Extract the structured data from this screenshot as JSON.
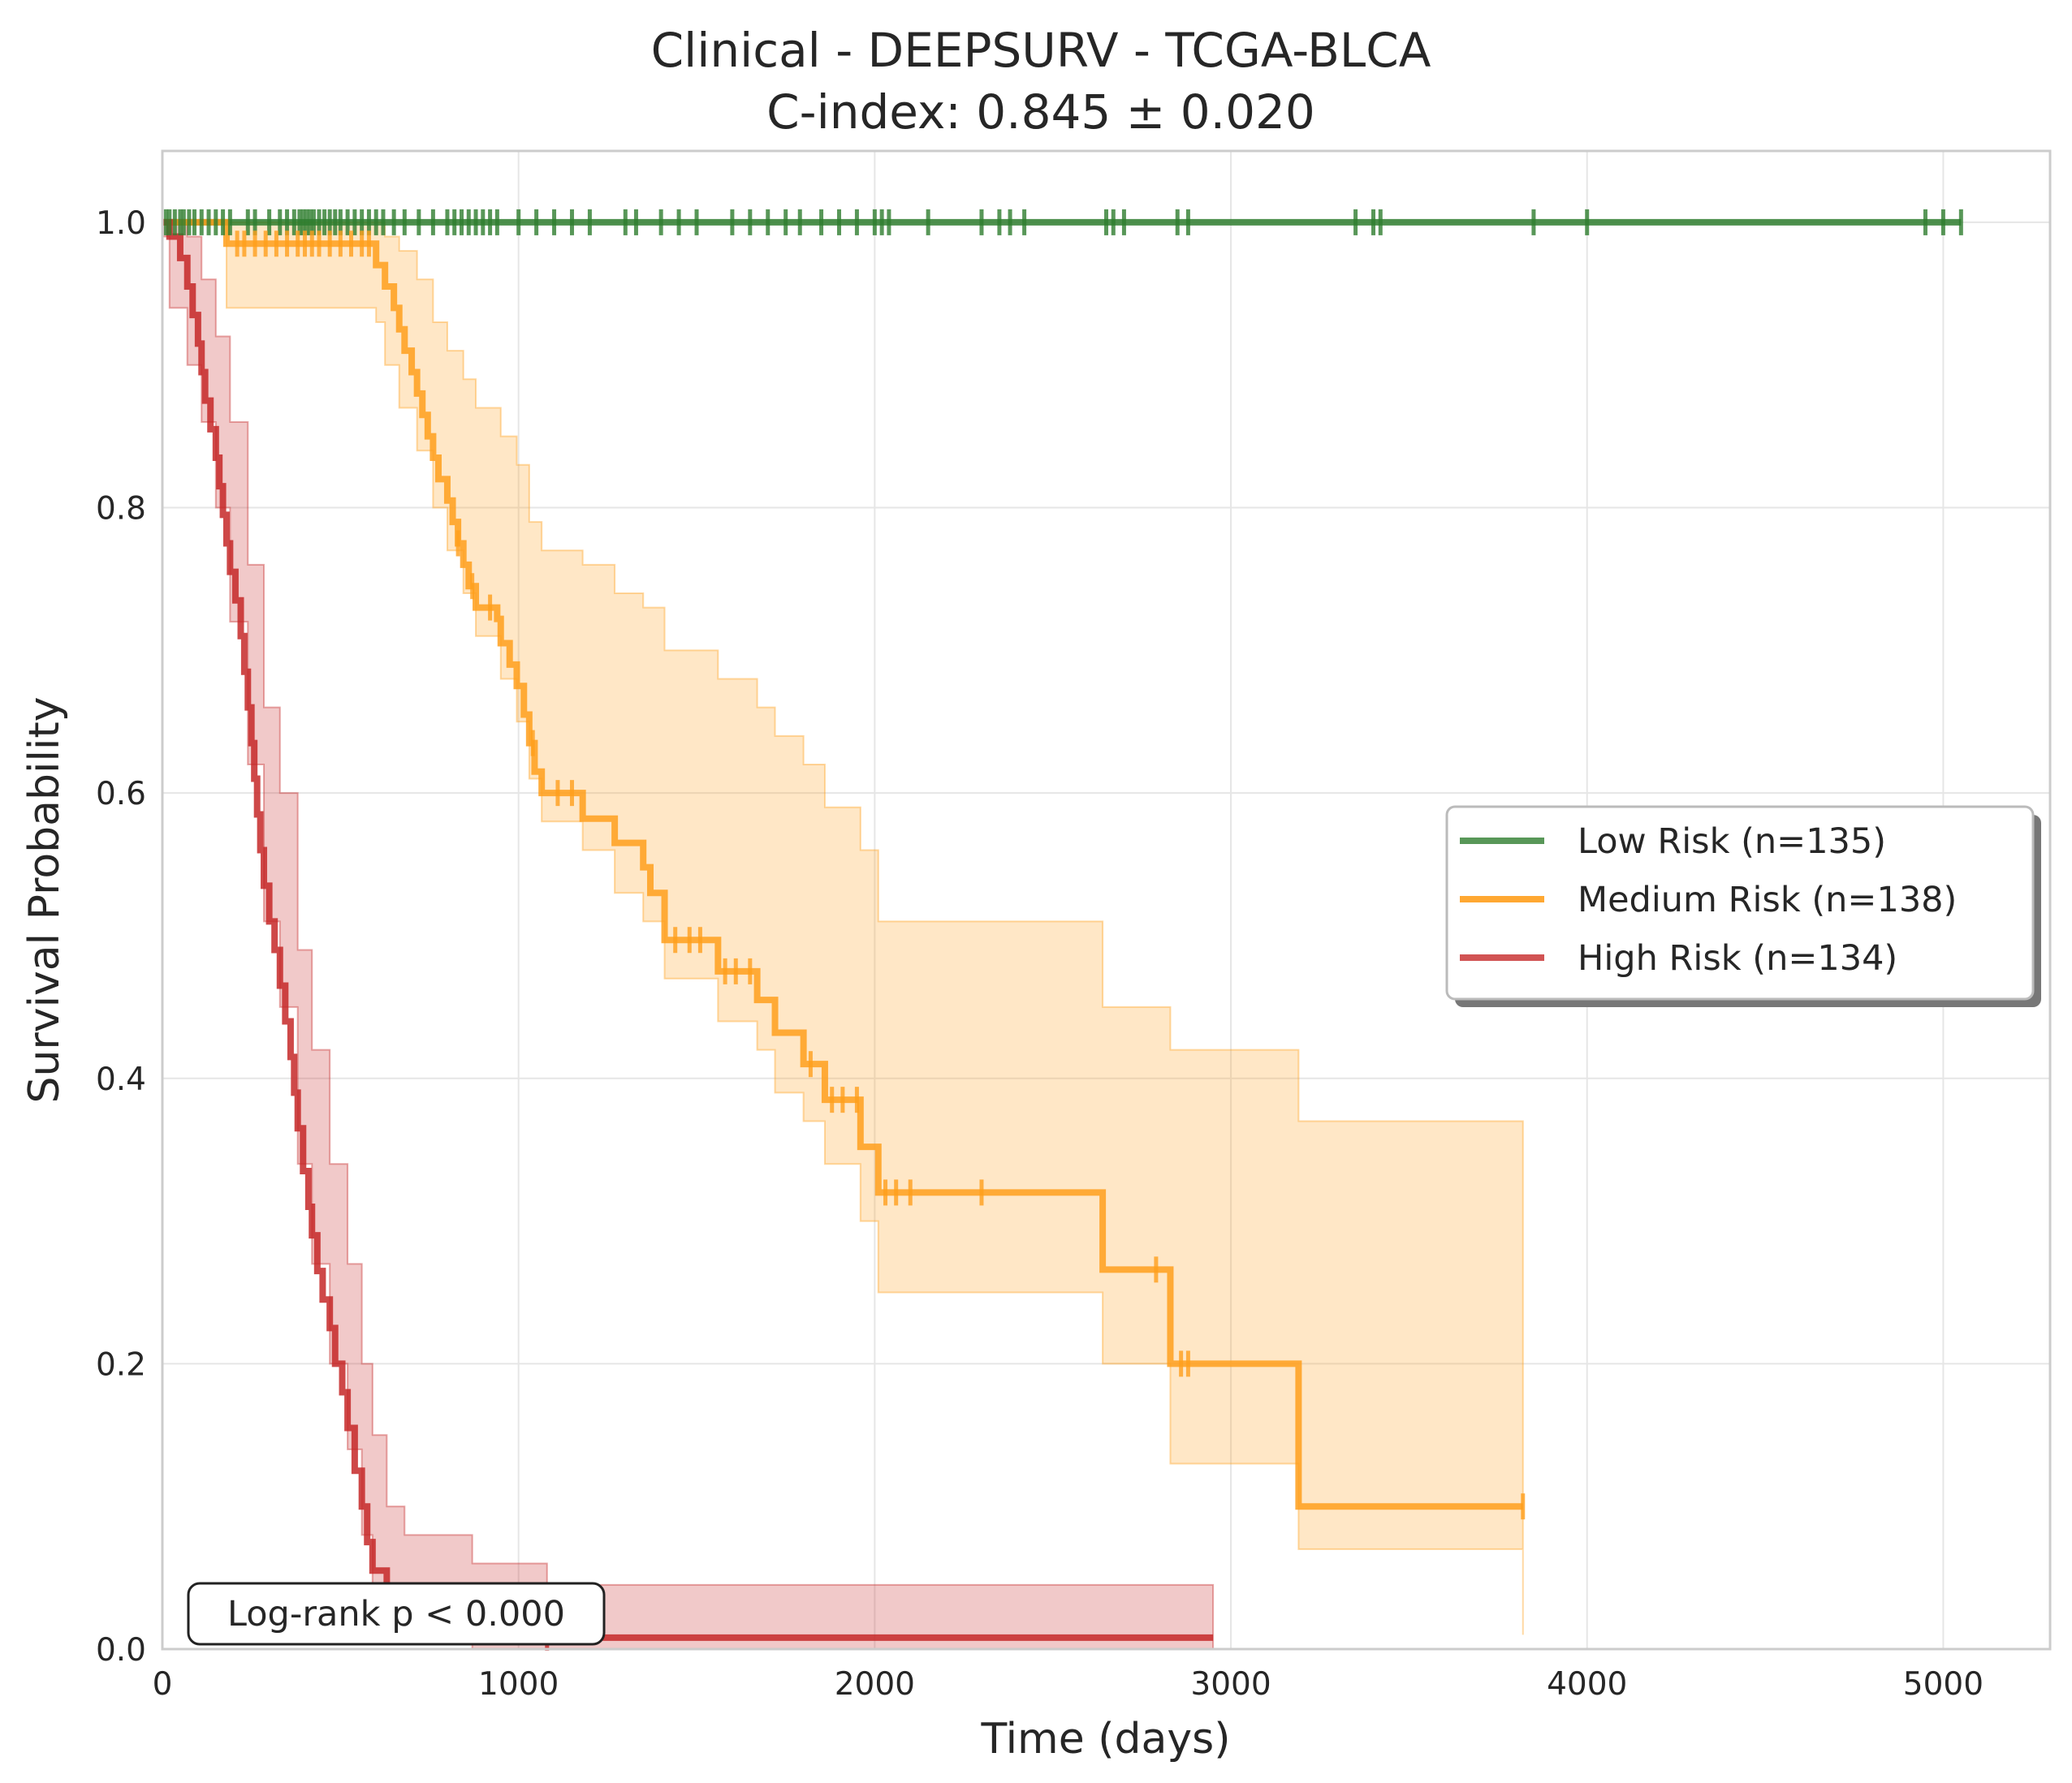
{
  "chart_data": {
    "type": "line",
    "subtype": "kaplan-meier",
    "title": "Clinical - DEEPSURV - TCGA-BLCA",
    "subtitle": "C-index: 0.845 ± 0.020",
    "xlabel": "Time (days)",
    "ylabel": "Survival Probability",
    "xlim": [
      0,
      5300
    ],
    "ylim": [
      0,
      1.05
    ],
    "xticks": [
      0,
      1000,
      2000,
      3000,
      4000,
      5000
    ],
    "xtick_labels": [
      "0",
      "1000",
      "2000",
      "3000",
      "4000",
      "5000"
    ],
    "yticks": [
      0.0,
      0.2,
      0.4,
      0.6,
      0.8,
      1.0
    ],
    "ytick_labels": [
      "0.0",
      "0.2",
      "0.4",
      "0.6",
      "0.8",
      "1.0"
    ],
    "grid": true,
    "legend_position": "center-right",
    "annotation": "Log-rank p < 0.000",
    "series": [
      {
        "name": "Low Risk (n=135)",
        "color": "#2e7d2e",
        "curve": [
          [
            0,
            1.0
          ],
          [
            5050,
            1.0
          ]
        ],
        "ci": [],
        "censors": [
          10,
          20,
          35,
          50,
          60,
          75,
          90,
          110,
          130,
          150,
          170,
          190,
          240,
          260,
          300,
          330,
          350,
          370,
          385,
          395,
          405,
          415,
          425,
          440,
          455,
          470,
          485,
          500,
          520,
          540,
          560,
          580,
          600,
          620,
          650,
          680,
          720,
          760,
          800,
          820,
          840,
          860,
          880,
          900,
          920,
          940,
          1000,
          1050,
          1100,
          1150,
          1200,
          1300,
          1330,
          1400,
          1450,
          1500,
          1600,
          1650,
          1700,
          1750,
          1790,
          1850,
          1900,
          1950,
          2000,
          2020,
          2040,
          2150,
          2300,
          2350,
          2380,
          2420,
          2650,
          2670,
          2700,
          2850,
          2880,
          3350,
          3400,
          3420,
          3850,
          4000,
          4950,
          5000,
          5050
        ]
      },
      {
        "name": "Medium Risk (n=138)",
        "color": "#ff9f1c",
        "curve": [
          [
            0,
            1.0
          ],
          [
            180,
            1.0
          ],
          [
            180,
            0.985
          ],
          [
            600,
            0.985
          ],
          [
            600,
            0.97
          ],
          [
            625,
            0.97
          ],
          [
            625,
            0.955
          ],
          [
            650,
            0.955
          ],
          [
            650,
            0.94
          ],
          [
            665,
            0.94
          ],
          [
            665,
            0.925
          ],
          [
            680,
            0.925
          ],
          [
            680,
            0.91
          ],
          [
            700,
            0.91
          ],
          [
            700,
            0.895
          ],
          [
            715,
            0.895
          ],
          [
            715,
            0.88
          ],
          [
            730,
            0.88
          ],
          [
            730,
            0.865
          ],
          [
            745,
            0.865
          ],
          [
            745,
            0.85
          ],
          [
            760,
            0.85
          ],
          [
            760,
            0.835
          ],
          [
            775,
            0.835
          ],
          [
            775,
            0.82
          ],
          [
            800,
            0.82
          ],
          [
            800,
            0.805
          ],
          [
            815,
            0.805
          ],
          [
            815,
            0.79
          ],
          [
            830,
            0.79
          ],
          [
            830,
            0.775
          ],
          [
            845,
            0.775
          ],
          [
            845,
            0.76
          ],
          [
            860,
            0.76
          ],
          [
            860,
            0.745
          ],
          [
            880,
            0.745
          ],
          [
            880,
            0.73
          ],
          [
            940,
            0.73
          ],
          [
            940,
            0.722
          ],
          [
            950,
            0.722
          ],
          [
            950,
            0.705
          ],
          [
            975,
            0.705
          ],
          [
            975,
            0.69
          ],
          [
            995,
            0.69
          ],
          [
            995,
            0.675
          ],
          [
            1015,
            0.675
          ],
          [
            1015,
            0.655
          ],
          [
            1030,
            0.655
          ],
          [
            1030,
            0.635
          ],
          [
            1045,
            0.635
          ],
          [
            1045,
            0.615
          ],
          [
            1065,
            0.615
          ],
          [
            1065,
            0.6
          ],
          [
            1180,
            0.6
          ],
          [
            1180,
            0.582
          ],
          [
            1270,
            0.582
          ],
          [
            1270,
            0.565
          ],
          [
            1350,
            0.565
          ],
          [
            1350,
            0.548
          ],
          [
            1370,
            0.548
          ],
          [
            1370,
            0.53
          ],
          [
            1410,
            0.53
          ],
          [
            1410,
            0.497
          ],
          [
            1560,
            0.497
          ],
          [
            1560,
            0.475
          ],
          [
            1670,
            0.475
          ],
          [
            1670,
            0.455
          ],
          [
            1720,
            0.455
          ],
          [
            1720,
            0.432
          ],
          [
            1800,
            0.432
          ],
          [
            1800,
            0.41
          ],
          [
            1860,
            0.41
          ],
          [
            1860,
            0.385
          ],
          [
            1960,
            0.385
          ],
          [
            1960,
            0.352
          ],
          [
            2010,
            0.352
          ],
          [
            2010,
            0.32
          ],
          [
            2640,
            0.32
          ],
          [
            2640,
            0.266
          ],
          [
            2830,
            0.266
          ],
          [
            2830,
            0.2
          ],
          [
            3190,
            0.2
          ],
          [
            3190,
            0.1
          ],
          [
            3820,
            0.1
          ]
        ],
        "ci": [
          [
            0,
            1.0,
            1.0
          ],
          [
            180,
            0.94,
            1.0
          ],
          [
            600,
            0.93,
            1.0
          ],
          [
            625,
            0.9,
            0.99
          ],
          [
            665,
            0.87,
            0.98
          ],
          [
            715,
            0.84,
            0.96
          ],
          [
            760,
            0.8,
            0.93
          ],
          [
            800,
            0.77,
            0.91
          ],
          [
            845,
            0.74,
            0.89
          ],
          [
            880,
            0.71,
            0.87
          ],
          [
            950,
            0.68,
            0.85
          ],
          [
            995,
            0.65,
            0.83
          ],
          [
            1030,
            0.61,
            0.79
          ],
          [
            1065,
            0.58,
            0.77
          ],
          [
            1180,
            0.56,
            0.76
          ],
          [
            1270,
            0.53,
            0.74
          ],
          [
            1350,
            0.51,
            0.73
          ],
          [
            1410,
            0.47,
            0.7
          ],
          [
            1560,
            0.44,
            0.68
          ],
          [
            1670,
            0.42,
            0.66
          ],
          [
            1720,
            0.39,
            0.64
          ],
          [
            1800,
            0.37,
            0.62
          ],
          [
            1860,
            0.34,
            0.59
          ],
          [
            1960,
            0.3,
            0.56
          ],
          [
            2010,
            0.25,
            0.51
          ],
          [
            2640,
            0.2,
            0.45
          ],
          [
            2830,
            0.13,
            0.42
          ],
          [
            3190,
            0.07,
            0.37
          ],
          [
            3820,
            0.01,
            0.32
          ]
        ],
        "censors": [
          210,
          230,
          260,
          290,
          320,
          350,
          380,
          400,
          420,
          440,
          470,
          500,
          530,
          560,
          580,
          830,
          870,
          920,
          1040,
          1110,
          1150,
          1440,
          1480,
          1510,
          1580,
          1610,
          1650,
          1820,
          1880,
          1910,
          1950,
          2030,
          2060,
          2100,
          2300,
          2790,
          2860,
          2880,
          3820
        ]
      },
      {
        "name": "High Risk (n=134)",
        "color": "#c62828",
        "curve": [
          [
            0,
            1.0
          ],
          [
            20,
            1.0
          ],
          [
            20,
            0.99
          ],
          [
            50,
            0.99
          ],
          [
            50,
            0.975
          ],
          [
            70,
            0.975
          ],
          [
            70,
            0.955
          ],
          [
            85,
            0.955
          ],
          [
            85,
            0.935
          ],
          [
            100,
            0.935
          ],
          [
            100,
            0.915
          ],
          [
            110,
            0.915
          ],
          [
            110,
            0.895
          ],
          [
            120,
            0.895
          ],
          [
            120,
            0.875
          ],
          [
            135,
            0.875
          ],
          [
            135,
            0.855
          ],
          [
            150,
            0.855
          ],
          [
            150,
            0.835
          ],
          [
            160,
            0.835
          ],
          [
            160,
            0.815
          ],
          [
            170,
            0.815
          ],
          [
            170,
            0.795
          ],
          [
            180,
            0.795
          ],
          [
            180,
            0.775
          ],
          [
            190,
            0.775
          ],
          [
            190,
            0.755
          ],
          [
            205,
            0.755
          ],
          [
            205,
            0.735
          ],
          [
            220,
            0.735
          ],
          [
            220,
            0.71
          ],
          [
            230,
            0.71
          ],
          [
            230,
            0.685
          ],
          [
            240,
            0.685
          ],
          [
            240,
            0.66
          ],
          [
            250,
            0.66
          ],
          [
            250,
            0.635
          ],
          [
            258,
            0.635
          ],
          [
            258,
            0.61
          ],
          [
            266,
            0.61
          ],
          [
            266,
            0.585
          ],
          [
            275,
            0.585
          ],
          [
            275,
            0.56
          ],
          [
            285,
            0.56
          ],
          [
            285,
            0.535
          ],
          [
            300,
            0.535
          ],
          [
            300,
            0.51
          ],
          [
            315,
            0.51
          ],
          [
            315,
            0.49
          ],
          [
            330,
            0.49
          ],
          [
            330,
            0.465
          ],
          [
            345,
            0.465
          ],
          [
            345,
            0.44
          ],
          [
            360,
            0.44
          ],
          [
            360,
            0.415
          ],
          [
            370,
            0.415
          ],
          [
            370,
            0.39
          ],
          [
            380,
            0.39
          ],
          [
            380,
            0.365
          ],
          [
            395,
            0.365
          ],
          [
            395,
            0.335
          ],
          [
            410,
            0.335
          ],
          [
            410,
            0.31
          ],
          [
            420,
            0.31
          ],
          [
            420,
            0.29
          ],
          [
            435,
            0.29
          ],
          [
            435,
            0.265
          ],
          [
            450,
            0.265
          ],
          [
            450,
            0.245
          ],
          [
            470,
            0.245
          ],
          [
            470,
            0.225
          ],
          [
            485,
            0.225
          ],
          [
            485,
            0.2
          ],
          [
            505,
            0.2
          ],
          [
            505,
            0.18
          ],
          [
            520,
            0.18
          ],
          [
            520,
            0.155
          ],
          [
            540,
            0.155
          ],
          [
            540,
            0.125
          ],
          [
            560,
            0.125
          ],
          [
            560,
            0.1
          ],
          [
            575,
            0.1
          ],
          [
            575,
            0.075
          ],
          [
            590,
            0.075
          ],
          [
            590,
            0.055
          ],
          [
            630,
            0.055
          ],
          [
            630,
            0.03
          ],
          [
            680,
            0.03
          ],
          [
            680,
            0.02
          ],
          [
            800,
            0.02
          ],
          [
            800,
            0.015
          ],
          [
            870,
            0.015
          ],
          [
            870,
            0.008
          ],
          [
            2950,
            0.008
          ]
        ],
        "ci": [
          [
            0,
            0.99,
            1.0
          ],
          [
            20,
            0.94,
            1.0
          ],
          [
            70,
            0.9,
            0.99
          ],
          [
            110,
            0.86,
            0.96
          ],
          [
            150,
            0.8,
            0.92
          ],
          [
            190,
            0.72,
            0.86
          ],
          [
            240,
            0.62,
            0.76
          ],
          [
            285,
            0.51,
            0.66
          ],
          [
            330,
            0.45,
            0.6
          ],
          [
            380,
            0.34,
            0.49
          ],
          [
            420,
            0.27,
            0.42
          ],
          [
            470,
            0.2,
            0.34
          ],
          [
            520,
            0.14,
            0.27
          ],
          [
            560,
            0.08,
            0.2
          ],
          [
            590,
            0.04,
            0.15
          ],
          [
            630,
            0.02,
            0.1
          ],
          [
            680,
            0.01,
            0.08
          ],
          [
            870,
            0.0,
            0.06
          ],
          [
            1080,
            0.0,
            0.045
          ],
          [
            2950,
            0.0,
            0.04
          ]
        ],
        "censors": [
          1080
        ]
      }
    ]
  }
}
